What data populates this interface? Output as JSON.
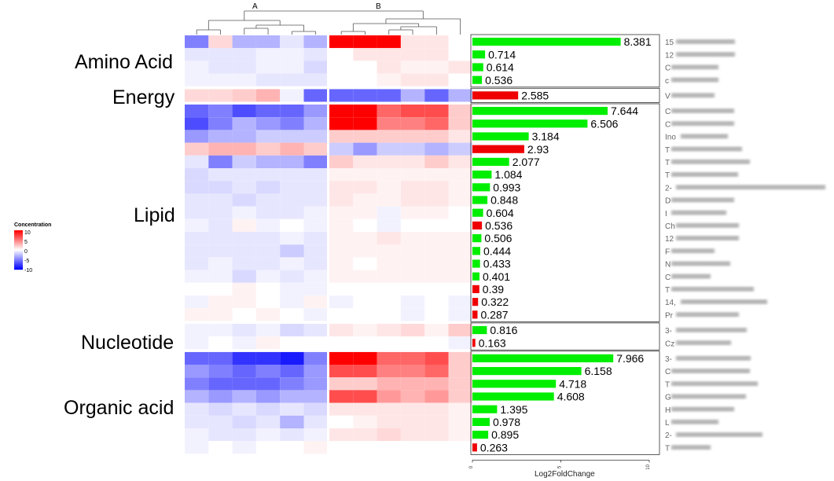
{
  "legend": {
    "title": "Concentration",
    "ticks": [
      "10",
      "5",
      "0",
      "-5",
      "-10"
    ],
    "colors": {
      "high": "#ff0000",
      "mid": "#ffffff",
      "low": "#0000ff"
    }
  },
  "colors": {
    "positive_bar": "#00ee00",
    "negative_bar": "#ee0000"
  },
  "conditions": [
    "A",
    "B"
  ],
  "groups": [
    {
      "label": "Amino Acid",
      "rows": 4
    },
    {
      "label": "Energy",
      "rows": 1
    },
    {
      "label": "Lipid",
      "rows": 17
    },
    {
      "label": "Nucleotide",
      "rows": 2
    },
    {
      "label": "Organic acid",
      "rows": 8
    }
  ],
  "chart_data": {
    "type": "bar",
    "orientation": "horizontal",
    "xlabel": "Log2FoldChange",
    "xlim": [
      0,
      10
    ],
    "xticks": [
      "0",
      "5",
      "10"
    ],
    "values": [
      8.381,
      0.714,
      0.614,
      0.536,
      2.585,
      7.644,
      6.506,
      3.184,
      2.93,
      2.077,
      1.084,
      0.993,
      0.848,
      0.604,
      0.536,
      0.506,
      0.444,
      0.433,
      0.401,
      0.39,
      0.322,
      0.287,
      0.816,
      0.163,
      7.966,
      6.158,
      4.718,
      4.608,
      1.395,
      0.978,
      0.895,
      0.263
    ],
    "direction": [
      "up",
      "up",
      "up",
      "up",
      "down",
      "up",
      "up",
      "up",
      "down",
      "up",
      "up",
      "up",
      "up",
      "up",
      "down",
      "up",
      "up",
      "up",
      "up",
      "down",
      "down",
      "down",
      "up",
      "down",
      "up",
      "up",
      "up",
      "up",
      "up",
      "up",
      "up",
      "down"
    ],
    "labels": [
      "8.381",
      "0.714",
      "0.614",
      "0.536",
      "2.585",
      "7.644",
      "6.506",
      "3.184",
      "2.93",
      "2.077",
      "1.084",
      "0.993",
      "0.848",
      "0.604",
      "0.536",
      "0.506",
      "0.444",
      "0.433",
      "0.401",
      "0.39",
      "0.322",
      "0.287",
      "0.816",
      "0.163",
      "7.966",
      "6.158",
      "4.718",
      "4.608",
      "1.395",
      "0.978",
      "0.895",
      "0.263"
    ],
    "row_name_prefixes": [
      "15",
      "12",
      "C",
      "c",
      "V",
      "C",
      "C",
      "Ino",
      "T",
      "T",
      "T",
      "2-",
      "D",
      "I",
      "Ch",
      "12",
      "F",
      "N",
      "C",
      "T",
      "14,",
      "Pr",
      "3-",
      "Cz",
      "3-",
      "C",
      "T",
      "G",
      "H",
      "L",
      "2-",
      "T"
    ],
    "heatmap": {
      "type": "heatmap",
      "columns": 12,
      "matrix": [
        [
          -5,
          1.5,
          -3,
          -3,
          -1,
          -3,
          10,
          10,
          10,
          1,
          1,
          0
        ],
        [
          -1,
          -1,
          -1,
          -0.5,
          -0.5,
          -1,
          0,
          1,
          1,
          1,
          1,
          0
        ],
        [
          -0.5,
          -1,
          -1,
          -0.5,
          -0.5,
          -1.5,
          0,
          0,
          1,
          0.5,
          0.5,
          1
        ],
        [
          -0.5,
          -0.5,
          -0.5,
          -1,
          -1,
          -1,
          0,
          0,
          0.5,
          1,
          1,
          0
        ],
        [
          1.5,
          1.5,
          2,
          3,
          -0.5,
          -6,
          -6,
          -6,
          -6,
          -3,
          -6,
          -3
        ],
        [
          -6,
          -5,
          -7,
          -6,
          -6,
          -4,
          10,
          10,
          6,
          7,
          7,
          2
        ],
        [
          -7,
          -5,
          -3,
          -4,
          -5,
          -3,
          10,
          10,
          5,
          5,
          6,
          2
        ],
        [
          -4,
          -3,
          -3,
          -2,
          -2,
          -2,
          2,
          2,
          2,
          2,
          2,
          1
        ],
        [
          2,
          3,
          3,
          2,
          3,
          2,
          -2,
          -4,
          -2,
          -2,
          -3,
          -2
        ],
        [
          -1,
          -5,
          -2,
          -3,
          -3,
          -5,
          2,
          1,
          1,
          1,
          2,
          1
        ],
        [
          -1.5,
          -1,
          -1,
          -1,
          -1,
          -1,
          0.5,
          0.5,
          0.5,
          0.5,
          0.5,
          0.5
        ],
        [
          -1.5,
          -1.5,
          -1,
          -1.5,
          -1,
          -1,
          1,
          1,
          0.5,
          1,
          1,
          0.5
        ],
        [
          -1,
          -1,
          -1.5,
          -1,
          -1,
          -1,
          1,
          0.5,
          0.5,
          1,
          1,
          0.5
        ],
        [
          -1,
          -1,
          -0.5,
          -1,
          -1,
          -0.5,
          0.5,
          0.5,
          -0.5,
          0.5,
          0.5,
          0
        ],
        [
          -0.5,
          -1,
          0.5,
          -0.5,
          0,
          -0.5,
          0.5,
          0,
          -0.5,
          0,
          0,
          0
        ],
        [
          -1,
          -1,
          -1,
          -1,
          -0.5,
          -1,
          0.5,
          0.5,
          1,
          0.5,
          0.5,
          0.5
        ],
        [
          -1,
          -1,
          -1,
          -1,
          -2,
          -1,
          0.5,
          0.5,
          0.5,
          0.5,
          0.5,
          0.5
        ],
        [
          -1,
          -0.5,
          -1,
          -1,
          -0.5,
          -1,
          0.5,
          0,
          0.5,
          0.5,
          0.5,
          0.5
        ],
        [
          -0.5,
          -0.5,
          -1.5,
          -0.5,
          -1,
          -0.5,
          0.5,
          0.5,
          0.5,
          0.5,
          0.5,
          0.5
        ],
        [
          0,
          0,
          0.5,
          0,
          -0.5,
          -0.5,
          0,
          0,
          0,
          0,
          0,
          0
        ],
        [
          -0.5,
          0.5,
          0.5,
          0,
          -0.5,
          0.5,
          -0.5,
          0,
          0,
          -0.5,
          0,
          -0.5
        ],
        [
          0.5,
          0.5,
          0,
          0.5,
          0,
          -0.5,
          0,
          0,
          0,
          -0.5,
          0,
          -0.5
        ],
        [
          -0.5,
          -0.5,
          -1,
          -0.5,
          -1.5,
          -1,
          1,
          0.5,
          1,
          1.5,
          0.5,
          2
        ],
        [
          -0.5,
          0,
          -0.5,
          0.5,
          0,
          0,
          0,
          0,
          0,
          0,
          0,
          -0.5
        ],
        [
          -6,
          -6,
          -8,
          -8,
          -9,
          -5,
          10,
          10,
          6,
          6,
          7,
          2
        ],
        [
          -4,
          -5,
          -6,
          -5,
          -6,
          -4,
          7,
          7,
          5,
          5,
          6,
          2
        ],
        [
          -5,
          -6,
          -6,
          -6,
          -5,
          -4,
          2,
          2,
          3,
          3,
          3,
          2
        ],
        [
          -3,
          -4,
          -3,
          -4,
          -3,
          -3,
          7,
          7,
          4,
          3,
          4,
          2
        ],
        [
          -1,
          -1.5,
          -1,
          -1.5,
          -1,
          -1.5,
          1,
          1,
          1,
          1,
          1,
          0.5
        ],
        [
          -1,
          -1,
          -1.5,
          -1,
          -3,
          -1,
          0,
          0.5,
          1,
          1,
          1,
          0.5
        ],
        [
          -0.5,
          -1,
          -1,
          -0.5,
          -1,
          -0.5,
          1,
          1,
          1.5,
          1,
          1,
          0.5
        ],
        [
          -0.5,
          0,
          -0.5,
          0,
          0,
          0.5,
          0,
          0,
          0,
          0,
          0,
          0
        ]
      ]
    }
  }
}
